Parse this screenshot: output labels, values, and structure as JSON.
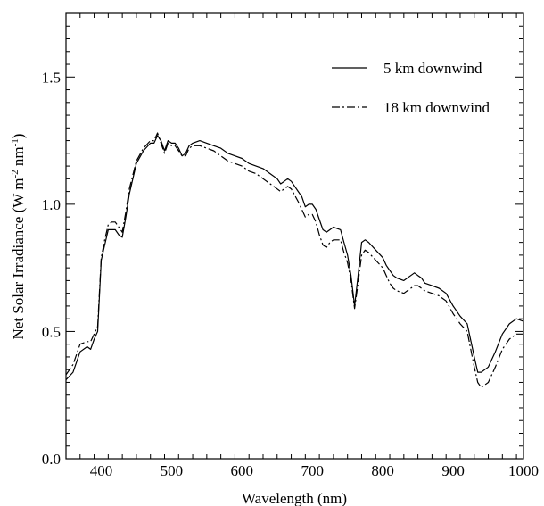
{
  "chart_data": {
    "type": "line",
    "xlabel": "Wavelength (nm)",
    "ylabel_main": "Net Solar Irradiance (W m",
    "ylabel_sup1": "-2",
    "ylabel_mid": " nm",
    "ylabel_sup2": "-1",
    "ylabel_end": ")",
    "xlim": [
      350,
      1000
    ],
    "ylim": [
      0.0,
      1.75
    ],
    "xticks": [
      400,
      500,
      600,
      700,
      800,
      900,
      1000
    ],
    "yticks": [
      0.0,
      0.5,
      1.0,
      1.5
    ],
    "ytick_labels": [
      "0.0",
      "0.5",
      "1.0",
      "1.5"
    ],
    "legend_position": "top-right",
    "grid": false,
    "colors": {
      "line": "#000000",
      "axis": "#000000",
      "background": "#ffffff"
    },
    "series": [
      {
        "name": "5 km downwind",
        "style": "solid",
        "x": [
          350,
          360,
          370,
          380,
          385,
          390,
          395,
          400,
          405,
          410,
          415,
          420,
          425,
          430,
          435,
          440,
          450,
          460,
          470,
          475,
          480,
          485,
          490,
          495,
          500,
          505,
          510,
          515,
          520,
          525,
          530,
          540,
          550,
          560,
          570,
          580,
          590,
          600,
          610,
          620,
          630,
          640,
          650,
          655,
          660,
          665,
          670,
          680,
          685,
          690,
          695,
          700,
          705,
          710,
          715,
          720,
          725,
          730,
          740,
          745,
          750,
          755,
          760,
          765,
          770,
          775,
          780,
          790,
          800,
          805,
          810,
          815,
          820,
          830,
          840,
          845,
          850,
          855,
          860,
          870,
          880,
          890,
          900,
          910,
          920,
          930,
          935,
          940,
          950,
          960,
          970,
          980,
          990,
          1000
        ],
        "y": [
          0.31,
          0.34,
          0.42,
          0.44,
          0.43,
          0.47,
          0.5,
          0.78,
          0.84,
          0.9,
          0.9,
          0.9,
          0.88,
          0.87,
          0.95,
          1.04,
          1.16,
          1.21,
          1.24,
          1.24,
          1.27,
          1.25,
          1.21,
          1.25,
          1.24,
          1.24,
          1.22,
          1.19,
          1.2,
          1.23,
          1.24,
          1.25,
          1.24,
          1.23,
          1.22,
          1.2,
          1.19,
          1.18,
          1.16,
          1.15,
          1.14,
          1.12,
          1.1,
          1.08,
          1.09,
          1.1,
          1.09,
          1.05,
          1.03,
          0.99,
          1.0,
          1.0,
          0.98,
          0.94,
          0.9,
          0.89,
          0.9,
          0.91,
          0.9,
          0.85,
          0.8,
          0.72,
          0.6,
          0.72,
          0.85,
          0.86,
          0.85,
          0.82,
          0.79,
          0.76,
          0.74,
          0.72,
          0.71,
          0.7,
          0.72,
          0.73,
          0.72,
          0.71,
          0.69,
          0.68,
          0.67,
          0.65,
          0.6,
          0.56,
          0.53,
          0.4,
          0.34,
          0.34,
          0.36,
          0.42,
          0.49,
          0.53,
          0.55,
          0.54
        ]
      },
      {
        "name": "18 km downwind",
        "style": "dashdot",
        "x": [
          350,
          360,
          370,
          380,
          385,
          390,
          395,
          400,
          405,
          410,
          415,
          420,
          425,
          430,
          435,
          440,
          450,
          460,
          470,
          475,
          480,
          485,
          490,
          495,
          500,
          505,
          510,
          515,
          520,
          525,
          530,
          540,
          550,
          560,
          570,
          580,
          590,
          600,
          610,
          620,
          630,
          640,
          650,
          655,
          660,
          665,
          670,
          680,
          685,
          690,
          695,
          700,
          705,
          710,
          715,
          720,
          725,
          730,
          740,
          745,
          750,
          755,
          760,
          765,
          770,
          775,
          780,
          790,
          800,
          805,
          810,
          815,
          820,
          830,
          840,
          845,
          850,
          855,
          860,
          870,
          880,
          890,
          900,
          910,
          920,
          930,
          935,
          940,
          950,
          960,
          970,
          980,
          990,
          1000
        ],
        "y": [
          0.33,
          0.37,
          0.45,
          0.46,
          0.46,
          0.49,
          0.52,
          0.79,
          0.86,
          0.92,
          0.93,
          0.93,
          0.91,
          0.89,
          0.97,
          1.06,
          1.17,
          1.22,
          1.25,
          1.25,
          1.28,
          1.24,
          1.2,
          1.24,
          1.23,
          1.23,
          1.21,
          1.19,
          1.19,
          1.22,
          1.23,
          1.23,
          1.22,
          1.21,
          1.19,
          1.17,
          1.16,
          1.15,
          1.13,
          1.12,
          1.1,
          1.08,
          1.06,
          1.05,
          1.06,
          1.07,
          1.06,
          1.01,
          0.98,
          0.95,
          0.96,
          0.96,
          0.93,
          0.88,
          0.84,
          0.83,
          0.85,
          0.86,
          0.86,
          0.81,
          0.77,
          0.7,
          0.59,
          0.69,
          0.8,
          0.82,
          0.81,
          0.78,
          0.75,
          0.72,
          0.69,
          0.67,
          0.66,
          0.65,
          0.67,
          0.68,
          0.68,
          0.67,
          0.66,
          0.65,
          0.64,
          0.62,
          0.57,
          0.53,
          0.5,
          0.36,
          0.3,
          0.28,
          0.3,
          0.36,
          0.43,
          0.47,
          0.49,
          0.49
        ]
      }
    ]
  }
}
